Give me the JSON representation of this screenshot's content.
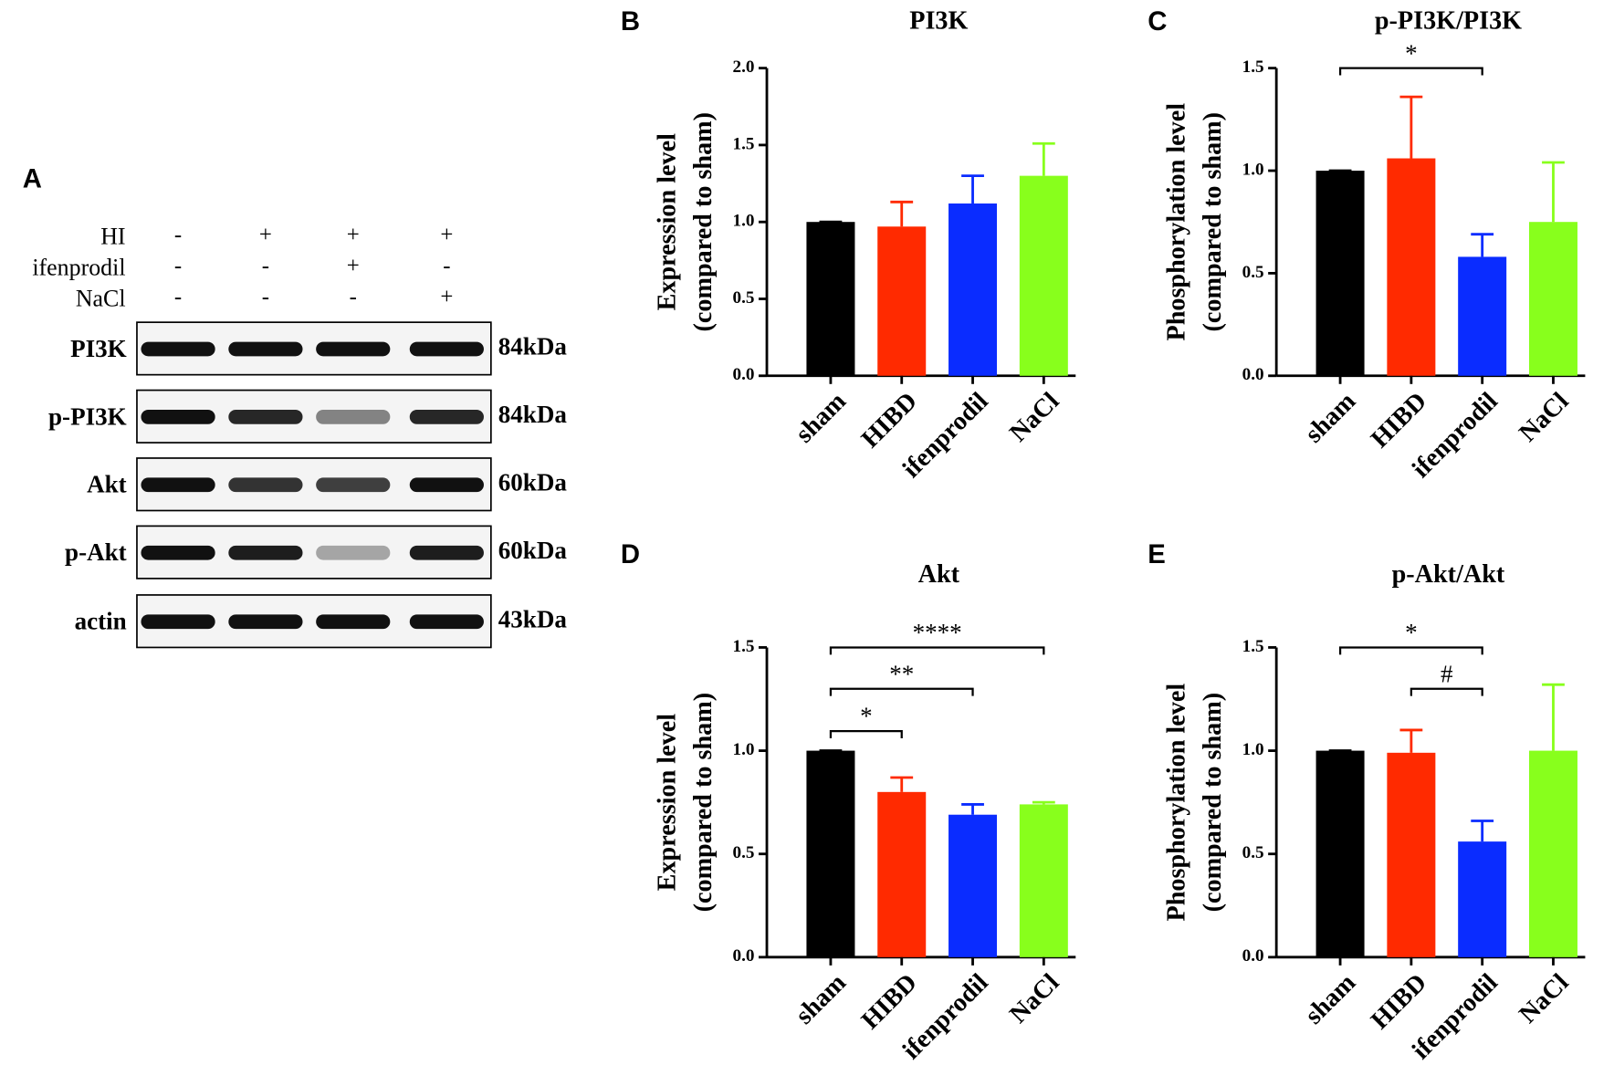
{
  "blot": {
    "label": "A",
    "conditions": [
      {
        "name": "HI",
        "signs": [
          "-",
          "+",
          "+",
          "+"
        ]
      },
      {
        "name": "ifenprodil",
        "signs": [
          "-",
          "-",
          "+",
          "-"
        ]
      },
      {
        "name": "NaCl",
        "signs": [
          "-",
          "-",
          "-",
          "+"
        ]
      }
    ],
    "bands": [
      {
        "name": "PI3K",
        "size": "84kDa"
      },
      {
        "name": "p-PI3K",
        "size": "84kDa"
      },
      {
        "name": "Akt",
        "size": "60kDa"
      },
      {
        "name": "p-Akt",
        "size": "60kDa"
      },
      {
        "name": "actin",
        "size": "43kDa"
      }
    ]
  },
  "chart_data": [
    {
      "type": "bar",
      "panel": "B",
      "title": "PI3K",
      "ylabel": [
        "Expression level",
        "(compared to sham)"
      ],
      "categories": [
        "sham",
        "HIBD",
        "ifenprodil",
        "NaCl"
      ],
      "values": [
        1.0,
        0.97,
        1.12,
        1.3
      ],
      "errors": [
        0,
        0.16,
        0.18,
        0.21
      ],
      "colors": [
        "#000000",
        "#ff2a00",
        "#0a2cff",
        "#88ff1c"
      ],
      "ylim": [
        0,
        2
      ],
      "yticks": [
        {
          "value": 0,
          "label": "0.0"
        },
        {
          "value": 0.5,
          "label": "0.5"
        },
        {
          "value": 1,
          "label": "1.0"
        },
        {
          "value": 1.5,
          "label": "1.5"
        },
        {
          "value": 2,
          "label": "2.0"
        }
      ],
      "annotations": []
    },
    {
      "type": "bar",
      "panel": "C",
      "title": "p-PI3K/PI3K",
      "ylabel": [
        "Phosphorylation level",
        "(compared to sham)"
      ],
      "categories": [
        "sham",
        "HIBD",
        "ifenprodil",
        "NaCl"
      ],
      "values": [
        1.0,
        1.06,
        0.58,
        0.75
      ],
      "errors": [
        0,
        0.3,
        0.11,
        0.29
      ],
      "colors": [
        "#000000",
        "#ff2a00",
        "#0a2cff",
        "#88ff1c"
      ],
      "ylim": [
        0,
        1.5
      ],
      "yticks": [
        {
          "value": 0,
          "label": "0.0"
        },
        {
          "value": 0.5,
          "label": "0.5"
        },
        {
          "value": 1,
          "label": "1.0"
        },
        {
          "value": 1.5,
          "label": "1.5"
        }
      ],
      "annotations": [
        {
          "from": "sham",
          "to": "ifenprodil",
          "label": "*"
        }
      ]
    },
    {
      "type": "bar",
      "panel": "D",
      "title": "Akt",
      "ylabel": [
        "Expression level",
        "(compared to sham)"
      ],
      "categories": [
        "sham",
        "HIBD",
        "ifenprodil",
        "NaCl"
      ],
      "values": [
        1.0,
        0.8,
        0.69,
        0.74
      ],
      "errors": [
        0,
        0.07,
        0.05,
        0.01
      ],
      "colors": [
        "#000000",
        "#ff2a00",
        "#0a2cff",
        "#88ff1c"
      ],
      "ylim": [
        0,
        1.5
      ],
      "yticks": [
        {
          "value": 0,
          "label": "0.0"
        },
        {
          "value": 0.5,
          "label": "0.5"
        },
        {
          "value": 1,
          "label": "1.0"
        },
        {
          "value": 1.5,
          "label": "1.5"
        }
      ],
      "annotations": [
        {
          "from": "sham",
          "to": "NaCl",
          "label": "****"
        },
        {
          "from": "sham",
          "to": "ifenprodil",
          "label": "**"
        },
        {
          "from": "sham",
          "to": "HIBD",
          "label": "*"
        }
      ]
    },
    {
      "type": "bar",
      "panel": "E",
      "title": "p-Akt/Akt",
      "ylabel": [
        "Phosphorylation level",
        "(compared to sham)"
      ],
      "categories": [
        "sham",
        "HIBD",
        "ifenprodil",
        "NaCl"
      ],
      "values": [
        1.0,
        0.99,
        0.56,
        1.0
      ],
      "errors": [
        0,
        0.11,
        0.1,
        0.32
      ],
      "colors": [
        "#000000",
        "#ff2a00",
        "#0a2cff",
        "#88ff1c"
      ],
      "ylim": [
        0,
        1.5
      ],
      "yticks": [
        {
          "value": 0,
          "label": "0.0"
        },
        {
          "value": 0.5,
          "label": "0.5"
        },
        {
          "value": 1,
          "label": "1.0"
        },
        {
          "value": 1.5,
          "label": "1.5"
        }
      ],
      "annotations": [
        {
          "from": "sham",
          "to": "ifenprodil",
          "label": "*"
        },
        {
          "from": "HIBD",
          "to": "ifenprodil",
          "label": "#"
        }
      ]
    }
  ]
}
